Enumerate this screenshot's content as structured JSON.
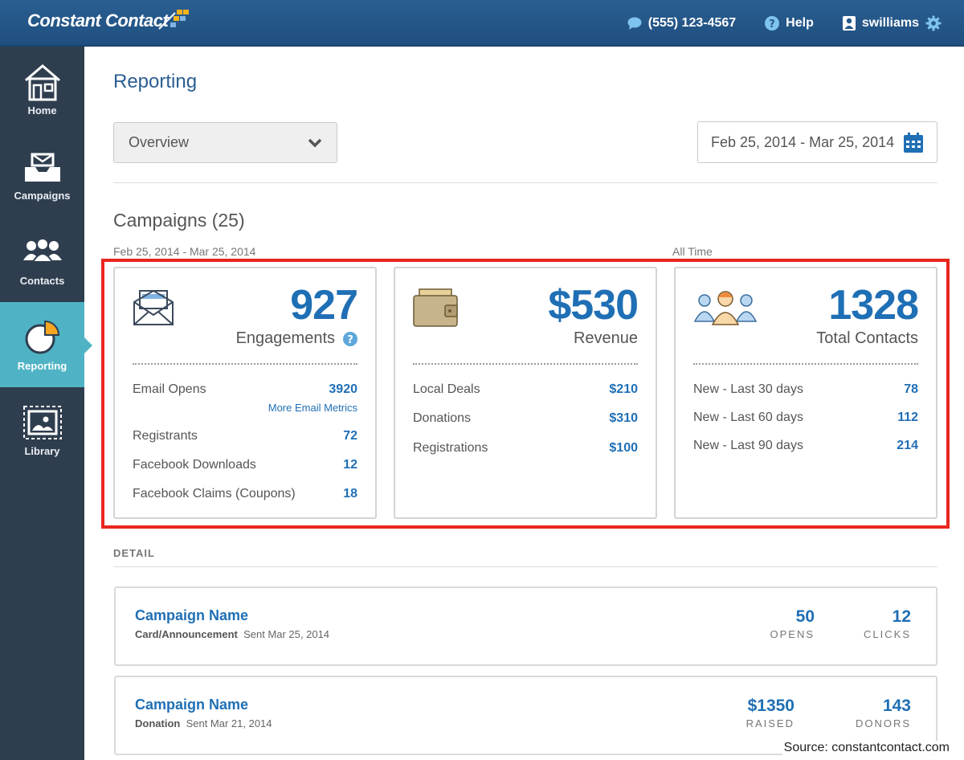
{
  "header": {
    "brand": "Constant Contact",
    "phone": "(555) 123-4567",
    "help": "Help",
    "username": "swilliams",
    "colors": {
      "bar": "#245789",
      "accent": "#1f6fb5"
    }
  },
  "sidebar": {
    "items": [
      {
        "label": "Home",
        "icon": "house-icon",
        "active": false
      },
      {
        "label": "Campaigns",
        "icon": "inbox-tray-icon",
        "active": false
      },
      {
        "label": "Contacts",
        "icon": "people-icon",
        "active": false
      },
      {
        "label": "Reporting",
        "icon": "pie-chart-icon",
        "active": true
      },
      {
        "label": "Library",
        "icon": "image-gallery-icon",
        "active": false
      }
    ],
    "active_color": "#4fb3c5"
  },
  "main": {
    "title": "Reporting",
    "view_select": {
      "value": "Overview"
    },
    "date_range": "Feb 25, 2014 - Mar 25, 2014",
    "section_title": "Campaigns (25)",
    "range_left": "Feb 25, 2014 - Mar 25, 2014",
    "range_right": "All Time"
  },
  "cards": [
    {
      "value": "927",
      "label": "Engagements",
      "icon": "envelope-icon",
      "rows": [
        {
          "label": "Email Opens",
          "value": "3920"
        },
        {
          "label": "Registrants",
          "value": "72"
        },
        {
          "label": "Facebook Downloads",
          "value": "12"
        },
        {
          "label": "Facebook Claims (Coupons)",
          "value": "18"
        }
      ],
      "link": "More Email Metrics"
    },
    {
      "value": "$530",
      "label": "Revenue",
      "icon": "wallet-icon",
      "rows": [
        {
          "label": "Local Deals",
          "value": "$210"
        },
        {
          "label": "Donations",
          "value": "$310"
        },
        {
          "label": "Registrations",
          "value": "$100"
        }
      ]
    },
    {
      "value": "1328",
      "label": "Total Contacts",
      "icon": "contacts-group-icon",
      "rows": [
        {
          "label": "New - Last 30 days",
          "value": "78"
        },
        {
          "label": "New - Last 60 days",
          "value": "112"
        },
        {
          "label": "New - Last 90 days",
          "value": "214"
        }
      ]
    }
  ],
  "detail": {
    "label": "DETAIL",
    "campaigns": [
      {
        "name": "Campaign Name",
        "type": "Card/Announcement",
        "sent": "Sent Mar 25, 2014",
        "metrics": [
          {
            "value": "50",
            "label": "OPENS"
          },
          {
            "value": "12",
            "label": "CLICKS"
          }
        ]
      },
      {
        "name": "Campaign Name",
        "type": "Donation",
        "sent": "Sent Mar 21, 2014",
        "metrics": [
          {
            "value": "$1350",
            "label": "RAISED"
          },
          {
            "value": "143",
            "label": "DONORS"
          }
        ]
      }
    ]
  },
  "source": "Source:  constantcontact.com"
}
